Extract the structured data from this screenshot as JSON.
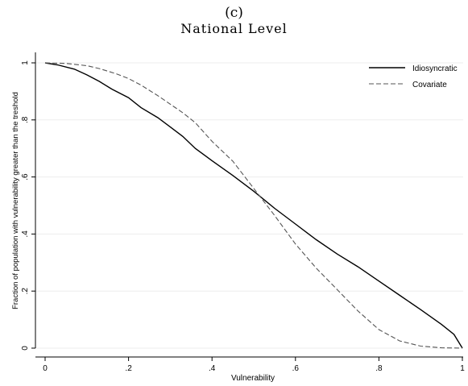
{
  "panel_label": "(c)",
  "chart_data": {
    "type": "line",
    "title": "National Level",
    "xlabel": "Vulnerability",
    "ylabel": "Fraction of population with vulnerability greater than the treshold",
    "xlim": [
      0,
      1
    ],
    "ylim": [
      0,
      1
    ],
    "xticks": [
      0,
      0.2,
      0.4,
      0.6,
      0.8,
      1
    ],
    "xtick_labels": [
      "0",
      ".2",
      ".4",
      ".6",
      ".8",
      "1"
    ],
    "yticks": [
      0,
      0.2,
      0.4,
      0.6,
      0.8,
      1
    ],
    "ytick_labels": [
      "0",
      ".2",
      ".4",
      ".6",
      ".8",
      "1"
    ],
    "grid": true,
    "legend_position": "top-right",
    "series": [
      {
        "name": "Idiosyncratic",
        "style": "solid",
        "color": "#000000",
        "x": [
          0,
          0.03,
          0.07,
          0.1,
          0.13,
          0.16,
          0.2,
          0.23,
          0.27,
          0.3,
          0.33,
          0.36,
          0.4,
          0.45,
          0.5,
          0.55,
          0.6,
          0.65,
          0.7,
          0.75,
          0.8,
          0.85,
          0.9,
          0.95,
          0.98,
          1.0
        ],
        "y": [
          1.0,
          0.993,
          0.978,
          0.958,
          0.935,
          0.908,
          0.878,
          0.843,
          0.808,
          0.775,
          0.742,
          0.7,
          0.657,
          0.605,
          0.55,
          0.49,
          0.435,
          0.38,
          0.33,
          0.285,
          0.235,
          0.185,
          0.135,
          0.083,
          0.048,
          0.0
        ]
      },
      {
        "name": "Covariate",
        "style": "dashed",
        "color": "#555555",
        "x": [
          0,
          0.05,
          0.1,
          0.13,
          0.17,
          0.2,
          0.23,
          0.27,
          0.3,
          0.33,
          0.36,
          0.4,
          0.45,
          0.5,
          0.55,
          0.6,
          0.65,
          0.7,
          0.75,
          0.8,
          0.85,
          0.9,
          0.95,
          1.0
        ],
        "y": [
          1.0,
          0.998,
          0.99,
          0.98,
          0.962,
          0.945,
          0.922,
          0.885,
          0.855,
          0.825,
          0.79,
          0.725,
          0.655,
          0.56,
          0.465,
          0.365,
          0.28,
          0.205,
          0.13,
          0.065,
          0.025,
          0.007,
          0.001,
          0.0
        ]
      }
    ]
  }
}
